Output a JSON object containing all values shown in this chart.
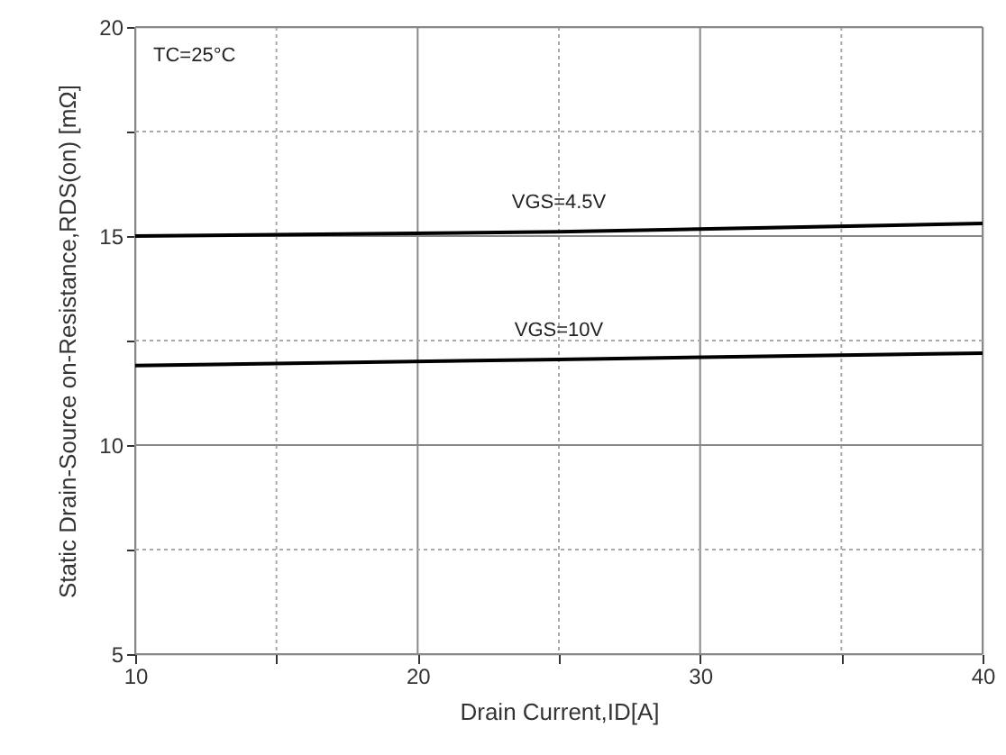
{
  "chart_data": {
    "type": "line",
    "xlabel": "Drain Current,ID[A]",
    "ylabel": "Static Drain-Source on-Resistance,RDS(on) [mΩ]",
    "annotations": [
      "TC=25°C"
    ],
    "series": [
      {
        "name": "VGS=4.5V",
        "color": "#000000",
        "x": [
          10,
          25,
          40
        ],
        "values": [
          15.0,
          15.1,
          15.3
        ]
      },
      {
        "name": "VGS=10V",
        "color": "#000000",
        "x": [
          10,
          25,
          40
        ],
        "values": [
          11.9,
          12.05,
          12.2
        ]
      }
    ],
    "xlim": [
      10,
      40
    ],
    "ylim": [
      5,
      20
    ],
    "xticks": [
      10,
      {
        "value": 15,
        "label": null
      },
      20,
      {
        "value": 25,
        "label": null
      },
      30,
      {
        "value": 35,
        "label": null
      },
      40
    ],
    "yticks": [
      5,
      {
        "value": 7.5,
        "label": null
      },
      10,
      {
        "value": 12.5,
        "label": null
      },
      15,
      {
        "value": 17.5,
        "label": null
      },
      20
    ],
    "grid": true,
    "marker": "none",
    "line_style": "solid"
  }
}
